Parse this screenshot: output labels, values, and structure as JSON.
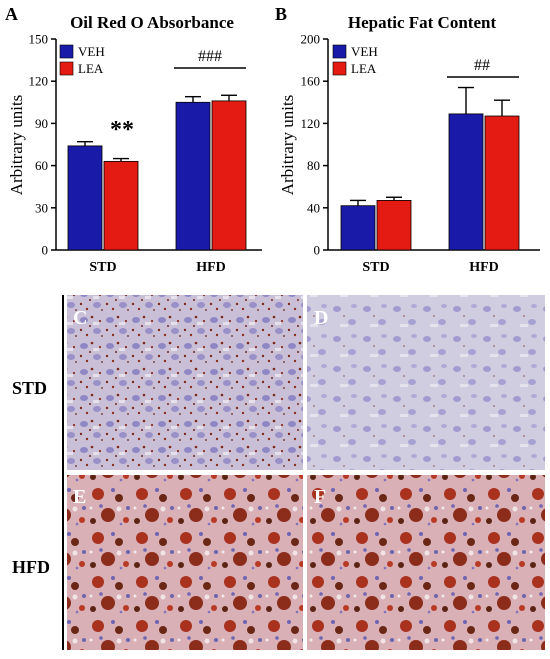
{
  "chart_data": [
    {
      "panel": "A",
      "type": "bar",
      "title": "Oil Red O Absorbance",
      "ylabel": "Arbitrary units",
      "xlabel": "",
      "categories": [
        "STD",
        "HFD"
      ],
      "series": [
        {
          "name": "VEH",
          "values": [
            74,
            105
          ],
          "errors": [
            3,
            4
          ]
        },
        {
          "name": "LEA",
          "values": [
            63,
            106
          ],
          "errors": [
            2,
            4
          ]
        }
      ],
      "ylim": [
        0,
        150
      ],
      "yticks": [
        "0",
        "30",
        "60",
        "90",
        "120",
        "150"
      ],
      "legend": "top-left",
      "annotations": [
        "**",
        "###"
      ]
    },
    {
      "panel": "B",
      "type": "bar",
      "title": "Hepatic Fat Content",
      "ylabel": "Arbitrary units",
      "xlabel": "",
      "categories": [
        "STD",
        "HFD"
      ],
      "series": [
        {
          "name": "VEH",
          "values": [
            42,
            129
          ],
          "errors": [
            5,
            25
          ]
        },
        {
          "name": "LEA",
          "values": [
            47,
            127
          ],
          "errors": [
            3,
            15
          ]
        }
      ],
      "ylim": [
        0,
        200
      ],
      "yticks": [
        "0",
        "40",
        "80",
        "120",
        "160",
        "200"
      ],
      "legend": "top-left",
      "annotations": [
        "##"
      ]
    }
  ],
  "colors": {
    "veh": "#1a1aa8",
    "lea": "#e41b12"
  },
  "micrographs": {
    "row_labels": [
      "STD",
      "HFD"
    ],
    "panel_letters": [
      "C",
      "D",
      "E",
      "F"
    ]
  }
}
